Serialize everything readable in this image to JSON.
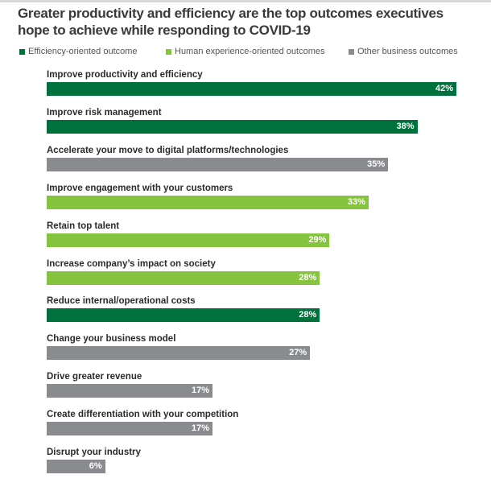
{
  "chart_data": {
    "type": "bar",
    "orientation": "horizontal",
    "title": "Greater productivity and efficiency are the top outcomes executives hope to achieve while responding to COVID-19",
    "legend": [
      {
        "name": "Efficiency-oriented outcome",
        "color": "#00703c"
      },
      {
        "name": "Human experience-oriented outcomes",
        "color": "#86c440"
      },
      {
        "name": "Other business outcomes",
        "color": "#898b8e"
      }
    ],
    "legend_placement": "top-left",
    "grid": false,
    "xlim": [
      0,
      42
    ],
    "categories": [
      "Improve productivity and efficiency",
      "Improve risk management",
      "Accelerate your move to digital platforms/technologies",
      "Improve engagement with your customers",
      "Retain top talent",
      "Increase company’s impact on society",
      "Reduce internal/operational costs",
      "Change your business model",
      "Drive greater revenue",
      "Create differentiation with your competition",
      "Disrupt your industry"
    ],
    "values": [
      42,
      38,
      35,
      33,
      29,
      28,
      28,
      27,
      17,
      17,
      6
    ],
    "labels": [
      "42%",
      "38%",
      "35%",
      "33%",
      "29%",
      "28%",
      "28%",
      "27%",
      "17%",
      "17%",
      "6%"
    ],
    "groups": [
      0,
      0,
      2,
      1,
      1,
      1,
      0,
      2,
      2,
      2,
      2
    ]
  }
}
